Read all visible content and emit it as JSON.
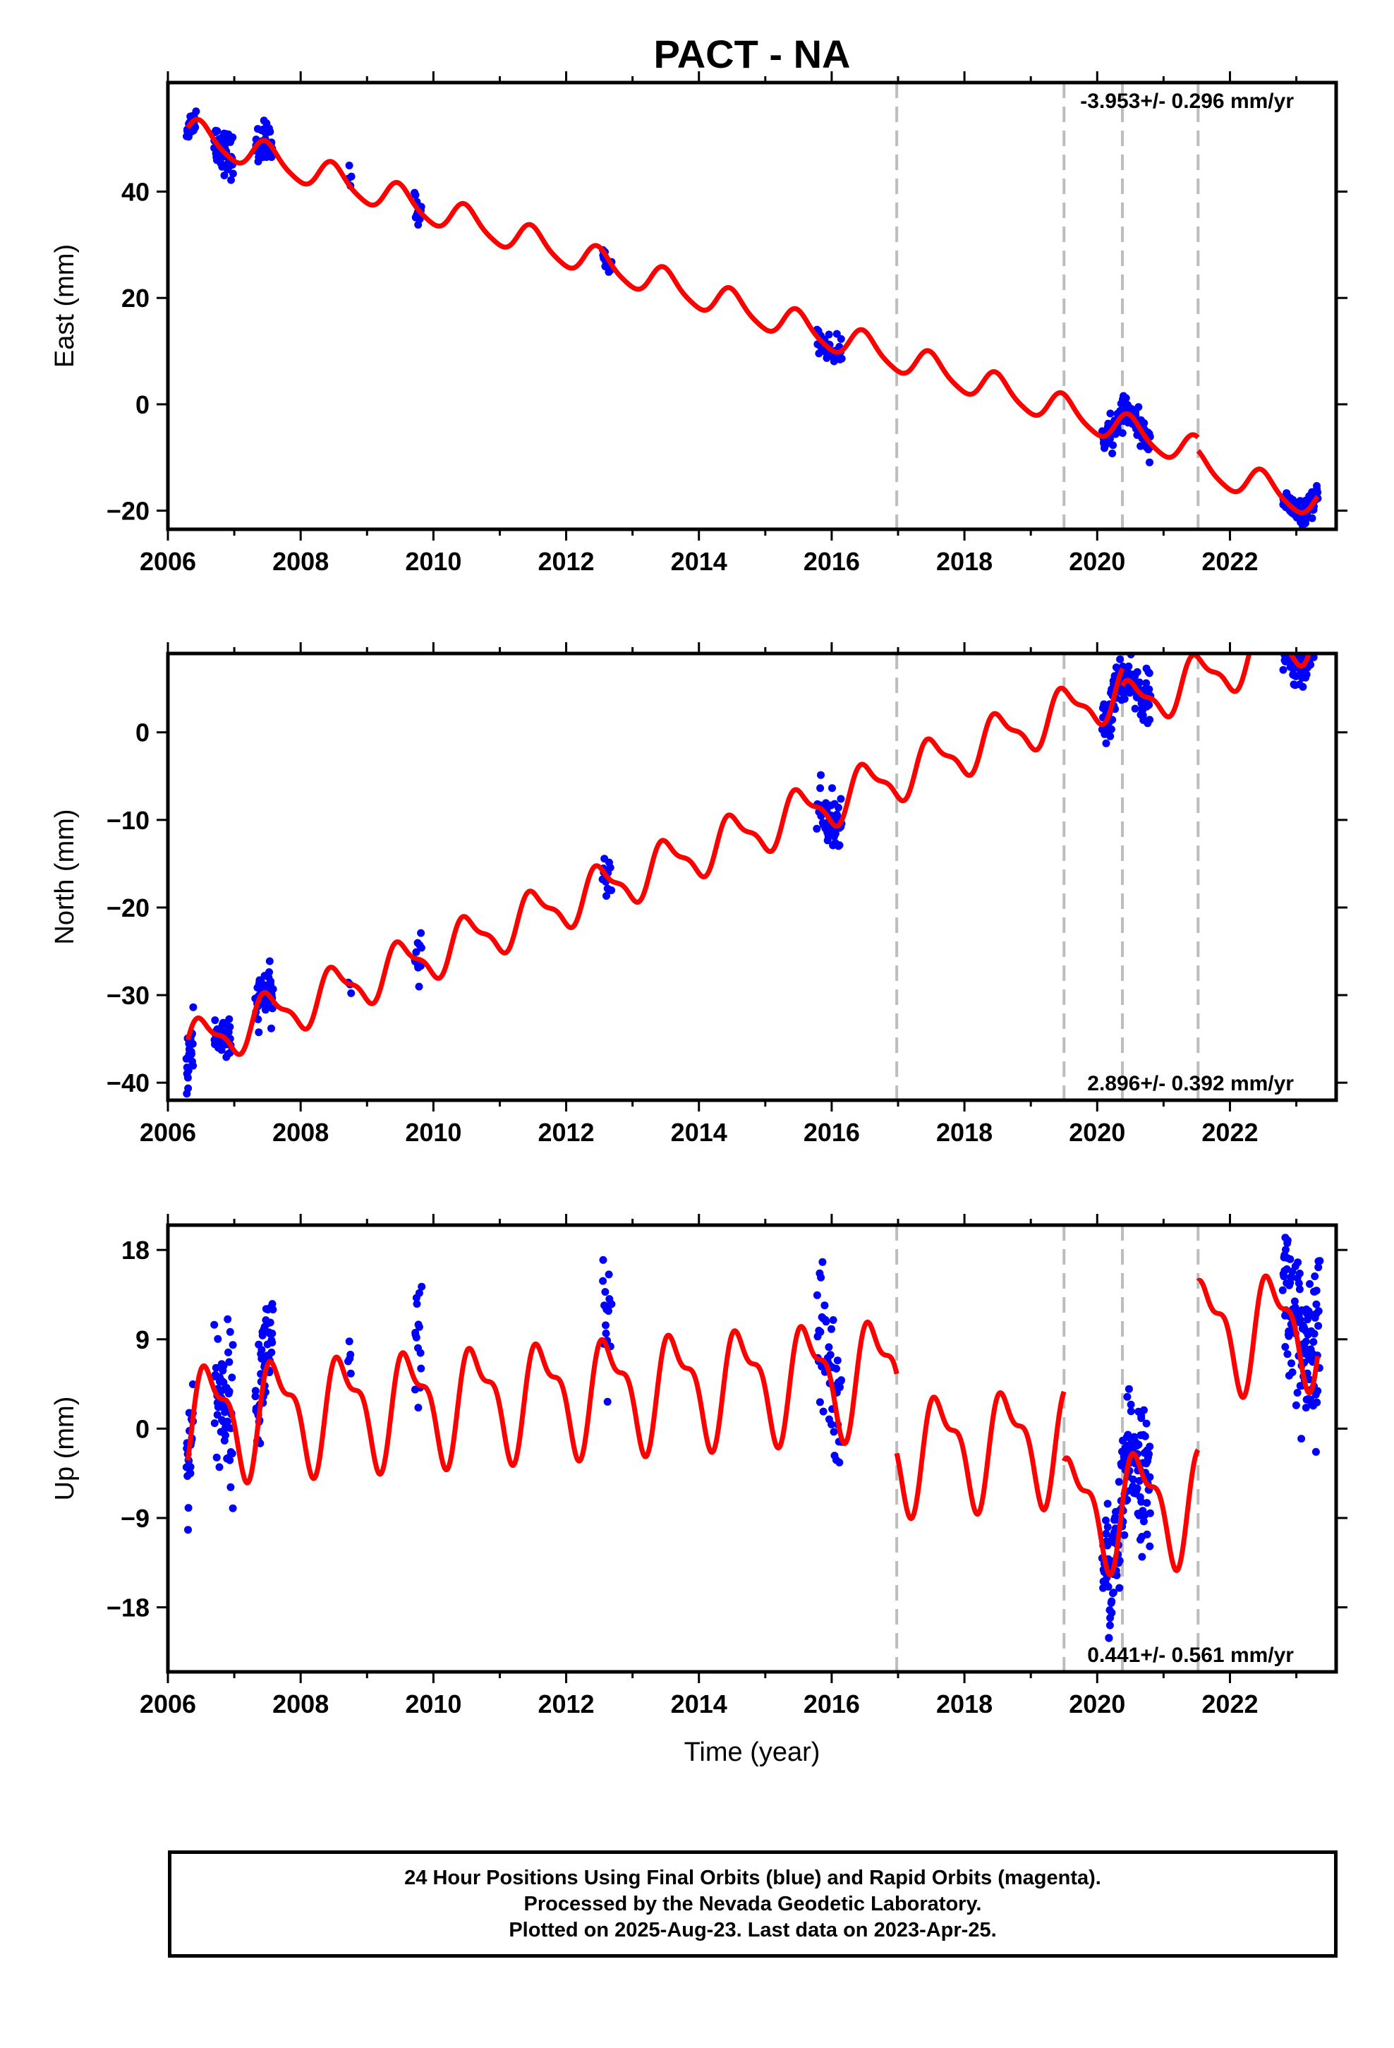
{
  "title": "PACT - NA",
  "colors": {
    "observations": "#0000ff",
    "model": "#ff0000",
    "step_lines": "#bdbdbd",
    "frame": "#000000"
  },
  "chart_data": [
    {
      "type": "scatter",
      "component": "east",
      "ylabel": "East (mm)",
      "xlabel": "",
      "rate_label": "-3.953+/- 0.296 mm/yr",
      "rate_position": "top-right",
      "xlim": [
        2006.0,
        2023.6
      ],
      "ylim": [
        -23.5,
        60.5
      ],
      "xticks": [
        2006,
        2008,
        2010,
        2012,
        2014,
        2016,
        2018,
        2020,
        2022
      ],
      "xtick_labels": [
        "2006",
        "2008",
        "2010",
        "2012",
        "2014",
        "2016",
        "2018",
        "2020",
        "2022"
      ],
      "yticks": [
        -20,
        0,
        20,
        40
      ],
      "ytick_labels": [
        "−20",
        "0",
        "20",
        "40"
      ],
      "grid": false,
      "model": {
        "t0": 2006.3,
        "intercept": 51.0,
        "rate": -3.953,
        "annual_sin": 2.6,
        "annual_cos": 1.0,
        "semiannual_sin": 0.5,
        "semiannual_cos": 0.0,
        "steps": [
          {
            "t": 2021.52,
            "offset": -2.5
          }
        ]
      },
      "scatter_clusters": [
        {
          "start": 2006.28,
          "end": 2006.42,
          "n": 20,
          "sigma": 1.2,
          "offset": 0
        },
        {
          "start": 2006.7,
          "end": 2006.98,
          "n": 60,
          "sigma": 2.0,
          "offset": 0.5
        },
        {
          "start": 2007.32,
          "end": 2007.58,
          "n": 50,
          "sigma": 2.0,
          "offset": -0.5
        },
        {
          "start": 2008.72,
          "end": 2008.76,
          "n": 4,
          "sigma": 0.8,
          "offset": 2.0
        },
        {
          "start": 2009.72,
          "end": 2009.82,
          "n": 15,
          "sigma": 1.5,
          "offset": 0
        },
        {
          "start": 2012.55,
          "end": 2012.68,
          "n": 14,
          "sigma": 0.8,
          "offset": -1.0
        },
        {
          "start": 2015.78,
          "end": 2016.15,
          "n": 45,
          "sigma": 1.2,
          "offset": 0
        },
        {
          "start": 2020.08,
          "end": 2020.8,
          "n": 120,
          "sigma": 1.3,
          "offset": 0
        },
        {
          "start": 2022.8,
          "end": 2023.32,
          "n": 110,
          "sigma": 1.0,
          "offset": 0
        }
      ]
    },
    {
      "type": "scatter",
      "component": "north",
      "ylabel": "North (mm)",
      "xlabel": "",
      "rate_label": "2.896+/- 0.392 mm/yr",
      "rate_position": "bottom-right",
      "xlim": [
        2006.0,
        2023.6
      ],
      "ylim": [
        -42.0,
        9.0
      ],
      "xticks": [
        2006,
        2008,
        2010,
        2012,
        2014,
        2016,
        2018,
        2020,
        2022
      ],
      "xtick_labels": [
        "2006",
        "2008",
        "2010",
        "2012",
        "2014",
        "2016",
        "2018",
        "2020",
        "2022"
      ],
      "yticks": [
        -40,
        -30,
        -20,
        -10,
        0
      ],
      "ytick_labels": [
        "−40",
        "−30",
        "−20",
        "−10",
        "0"
      ],
      "grid": false,
      "model": {
        "t0": 2006.3,
        "intercept": -36.0,
        "rate": 2.896,
        "annual_sin": 2.5,
        "annual_cos": 0.5,
        "semiannual_sin": 0.8,
        "semiannual_cos": 0.4,
        "steps": [
          {
            "t": 2020.38,
            "offset": -2.0
          }
        ]
      },
      "scatter_clusters": [
        {
          "start": 2006.28,
          "end": 2006.38,
          "n": 25,
          "sigma": 2.0,
          "offset": -2.0
        },
        {
          "start": 2006.7,
          "end": 2006.95,
          "n": 50,
          "sigma": 1.3,
          "offset": 0
        },
        {
          "start": 2007.32,
          "end": 2007.58,
          "n": 50,
          "sigma": 1.3,
          "offset": 0
        },
        {
          "start": 2008.72,
          "end": 2008.76,
          "n": 3,
          "sigma": 1.0,
          "offset": 0
        },
        {
          "start": 2009.72,
          "end": 2009.82,
          "n": 14,
          "sigma": 1.3,
          "offset": 0
        },
        {
          "start": 2012.55,
          "end": 2012.68,
          "n": 14,
          "sigma": 1.2,
          "offset": 0
        },
        {
          "start": 2015.78,
          "end": 2016.15,
          "n": 50,
          "sigma": 1.6,
          "offset": 0
        },
        {
          "start": 2020.08,
          "end": 2020.8,
          "n": 120,
          "sigma": 1.4,
          "offset": 0
        },
        {
          "start": 2022.8,
          "end": 2023.32,
          "n": 110,
          "sigma": 1.4,
          "offset": 0
        }
      ]
    },
    {
      "type": "scatter",
      "component": "up",
      "ylabel": "Up (mm)",
      "xlabel": "Time (year)",
      "rate_label": "0.441+/- 0.561 mm/yr",
      "rate_position": "bottom-right",
      "xlim": [
        2006.0,
        2023.6
      ],
      "ylim": [
        -24.5,
        20.5
      ],
      "xticks": [
        2006,
        2008,
        2010,
        2012,
        2014,
        2016,
        2018,
        2020,
        2022
      ],
      "xtick_labels": [
        "2006",
        "2008",
        "2010",
        "2012",
        "2014",
        "2016",
        "2018",
        "2020",
        "2022"
      ],
      "yticks": [
        -18,
        -9,
        0,
        9,
        18
      ],
      "ytick_labels": [
        "−18",
        "−9",
        "0",
        "9",
        "18"
      ],
      "grid": false,
      "model": {
        "t0": 2006.3,
        "intercept": 1.0,
        "rate": 0.441,
        "annual_sin": 4.0,
        "annual_cos": -3.0,
        "semiannual_sin": 1.8,
        "semiannual_cos": -1.2,
        "steps": [
          {
            "t": 2016.98,
            "offset": -8.0
          },
          {
            "t": 2019.5,
            "offset": -7.0
          },
          {
            "t": 2021.52,
            "offset": 17.0
          }
        ]
      },
      "scatter_clusters": [
        {
          "start": 2006.28,
          "end": 2006.38,
          "n": 25,
          "sigma": 2.5,
          "offset": 0
        },
        {
          "start": 2006.7,
          "end": 2006.98,
          "n": 60,
          "sigma": 3.5,
          "offset": 0
        },
        {
          "start": 2007.32,
          "end": 2007.58,
          "n": 55,
          "sigma": 3.0,
          "offset": 2.0
        },
        {
          "start": 2008.72,
          "end": 2008.76,
          "n": 5,
          "sigma": 2.5,
          "offset": 0
        },
        {
          "start": 2009.72,
          "end": 2009.82,
          "n": 15,
          "sigma": 4.0,
          "offset": 3.0
        },
        {
          "start": 2012.55,
          "end": 2012.68,
          "n": 16,
          "sigma": 4.0,
          "offset": 2.0
        },
        {
          "start": 2015.78,
          "end": 2016.15,
          "n": 50,
          "sigma": 4.0,
          "offset": 1.0
        },
        {
          "start": 2020.08,
          "end": 2020.8,
          "n": 160,
          "sigma": 3.2,
          "offset": 0
        },
        {
          "start": 2022.8,
          "end": 2023.35,
          "n": 120,
          "sigma": 4.0,
          "offset": 2.0
        }
      ]
    }
  ],
  "step_markers": [
    2016.98,
    2019.5,
    2020.38,
    2021.52
  ],
  "footer": {
    "line1": "24 Hour Positions Using Final Orbits (blue) and Rapid Orbits (magenta).",
    "line2": "Processed by the Nevada Geodetic Laboratory.",
    "line3": "Plotted on 2025-Aug-23. Last data on 2023-Apr-25."
  }
}
